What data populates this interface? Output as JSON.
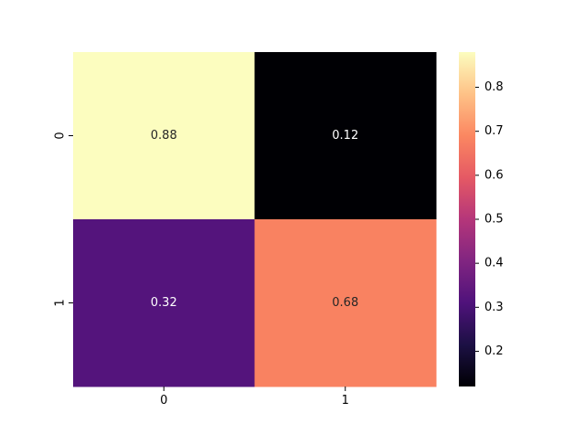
{
  "chart_data": {
    "type": "heatmap",
    "title": "",
    "xlabel": "",
    "ylabel": "",
    "x_categories": [
      "0",
      "1"
    ],
    "y_categories": [
      "0",
      "1"
    ],
    "values": [
      [
        0.88,
        0.12
      ],
      [
        0.32,
        0.68
      ]
    ],
    "annotations": [
      [
        "0.88",
        "0.12"
      ],
      [
        "0.32",
        "0.68"
      ]
    ],
    "colormap": "magma",
    "vmin": 0.12,
    "vmax": 0.88,
    "colorbar": {
      "ticks": [
        0.2,
        0.3,
        0.4,
        0.5,
        0.6,
        0.7,
        0.8
      ],
      "tick_labels": [
        "0.2",
        "0.3",
        "0.4",
        "0.5",
        "0.6",
        "0.7",
        "0.8"
      ]
    },
    "annotation_colors": {
      "light_cell_text": "#262626",
      "dark_cell_text": "#ffffff"
    },
    "grid": false,
    "legend": "none"
  }
}
